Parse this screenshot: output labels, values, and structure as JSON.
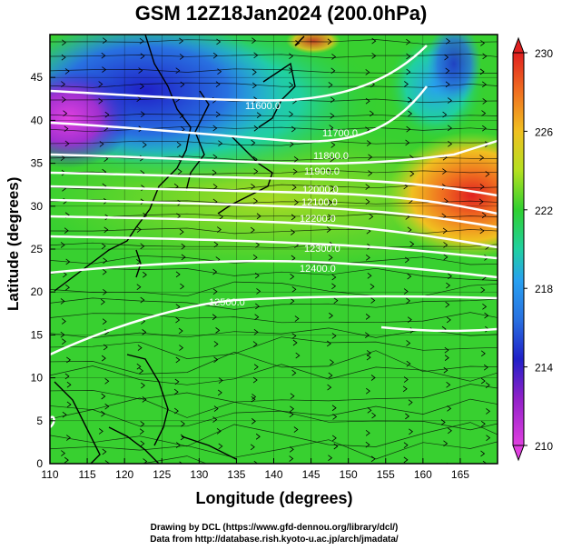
{
  "title": "GSM 12Z18Jan2024 (200.0hPa)",
  "xlabel": "Longitude (degrees)",
  "ylabel": "Latitude  (degrees)",
  "credit_line1": "Drawing by DCL (https://www.gfd-dennou.org/library/dcl/)",
  "credit_line2": "Data from http://database.rish.kyoto-u.ac.jp/arch/jmadata/",
  "chart_data": {
    "type": "heatmap",
    "variable": "temperature with geopotential height contours and wind streamlines",
    "xlim": [
      110,
      170
    ],
    "ylim": [
      0,
      50
    ],
    "x_ticks": [
      "110",
      "115",
      "120",
      "125",
      "130",
      "135",
      "140",
      "145",
      "150",
      "155",
      "160",
      "165"
    ],
    "y_ticks": [
      "0",
      "5",
      "10",
      "15",
      "20",
      "25",
      "30",
      "35",
      "40",
      "45"
    ],
    "colorbar": {
      "min": 210,
      "max": 230,
      "tick_labels": [
        "210",
        "214",
        "218",
        "222",
        "226",
        "230"
      ],
      "colors": [
        "#e040e0",
        "#2020c8",
        "#28a0f0",
        "#20d0a0",
        "#30d030",
        "#b4e020",
        "#f0c020",
        "#f07020",
        "#e02020"
      ]
    },
    "height_contours": [
      {
        "label": "11600.0",
        "lon": 142,
        "lat": 12
      },
      {
        "label": "11700.0",
        "lon": 151,
        "lat": 12.5
      },
      {
        "label": "11800.0",
        "lon": 150,
        "lat": 12.5
      },
      {
        "label": "11900.0",
        "lon": 148,
        "lat": 12
      },
      {
        "label": "12000.0",
        "lon": 147,
        "lat": 12
      },
      {
        "label": "12100.0",
        "lon": 146,
        "lat": 12
      },
      {
        "label": "12200.0",
        "lon": 147,
        "lat": 12
      },
      {
        "label": "12300.0",
        "lon": 149,
        "lat": 12
      },
      {
        "label": "12400.0",
        "lon": 148,
        "lat": 12
      },
      {
        "label": "12500.0",
        "lon": 133,
        "lat": 12
      }
    ]
  }
}
